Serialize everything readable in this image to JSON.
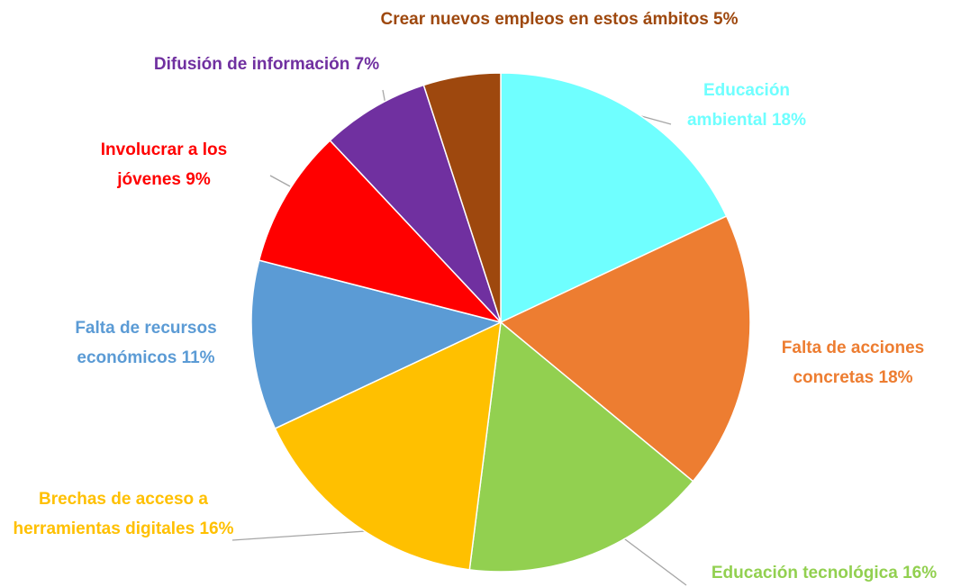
{
  "chart_data": {
    "type": "pie",
    "categories": [
      "Educación ambiental",
      "Falta de acciones concretas",
      "Educación tecnológica",
      "Brechas de acceso a herramientas digitales",
      "Falta de recursos económicos",
      "Involucrar a los jóvenes",
      "Difusión de información",
      "Crear nuevos empleos en estos ámbitos"
    ],
    "values": [
      18,
      18,
      16,
      16,
      11,
      9,
      7,
      5
    ],
    "value_labels": [
      "18%",
      "18%",
      "16%",
      "16%",
      "11%",
      "9%",
      "7%",
      "5%"
    ],
    "colors": [
      "#6fffff",
      "#ed7d31",
      "#92d050",
      "#ffc000",
      "#5b9bd5",
      "#ff0000",
      "#7030a0",
      "#9e480e"
    ]
  }
}
